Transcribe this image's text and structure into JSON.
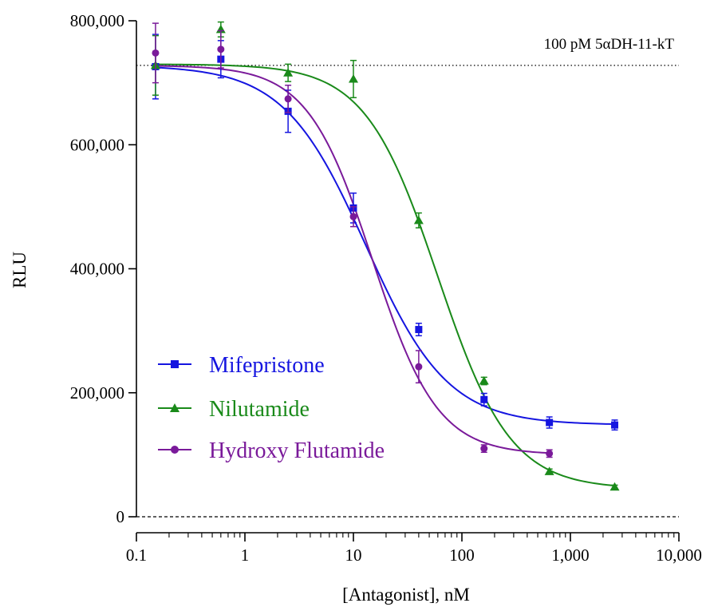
{
  "chart_data": {
    "type": "scatter",
    "xscale": "log",
    "xlabel": "[Antagonist], nM",
    "ylabel": "RLU",
    "xlim": [
      0.1,
      10000
    ],
    "ylim": [
      0,
      800000
    ],
    "x_ticks": [
      0.1,
      1,
      10,
      100,
      1000,
      10000
    ],
    "x_tick_labels": [
      "0.1",
      "1",
      "10",
      "100",
      "1,000",
      "10,000"
    ],
    "y_ticks": [
      0,
      200000,
      400000,
      600000,
      800000
    ],
    "y_tick_labels": [
      "0",
      "200,000",
      "400,000",
      "600,000",
      "800,000"
    ],
    "grid": false,
    "legend": "lower-left",
    "reference_lines": [
      {
        "label": "100 pM 5αDH-11-kT",
        "y": 728000,
        "style": "dotted"
      },
      {
        "label": "",
        "y": 0,
        "style": "dashed"
      }
    ],
    "series": [
      {
        "name": "Mifepristone",
        "color": "#1515e0",
        "marker": "square",
        "x": [
          0.15,
          0.6,
          2.5,
          10,
          40,
          160,
          640,
          2560
        ],
        "y": [
          726000,
          738000,
          654000,
          498000,
          302000,
          189000,
          152000,
          148000
        ],
        "err": [
          52000,
          30000,
          34000,
          24000,
          10000,
          10000,
          9000,
          8000
        ],
        "fit": {
          "bottom": 148000,
          "top": 728000,
          "ic50": 13,
          "hill": 1.15
        }
      },
      {
        "name": "Nilutamide",
        "color": "#1a8a1a",
        "marker": "triangle",
        "x": [
          0.15,
          0.6,
          2.5,
          10,
          40,
          160,
          640,
          2560
        ],
        "y": [
          728000,
          786000,
          716000,
          706000,
          478000,
          219000,
          73000,
          48000
        ],
        "err": [
          48000,
          12000,
          14000,
          30000,
          12000,
          6000,
          4000,
          3000
        ],
        "fit": {
          "bottom": 45000,
          "top": 730000,
          "ic50": 60,
          "hill": 1.3
        }
      },
      {
        "name": "Hydroxy Flutamide",
        "color": "#7a1a9a",
        "marker": "circle",
        "x": [
          0.15,
          0.6,
          2.5,
          10,
          40,
          160,
          640
        ],
        "y": [
          748000,
          754000,
          674000,
          484000,
          242000,
          110000,
          102000
        ],
        "err": [
          48000,
          30000,
          22000,
          16000,
          26000,
          6000,
          6000
        ],
        "fit": {
          "bottom": 100000,
          "top": 728000,
          "ic50": 15,
          "hill": 1.45
        }
      }
    ]
  }
}
